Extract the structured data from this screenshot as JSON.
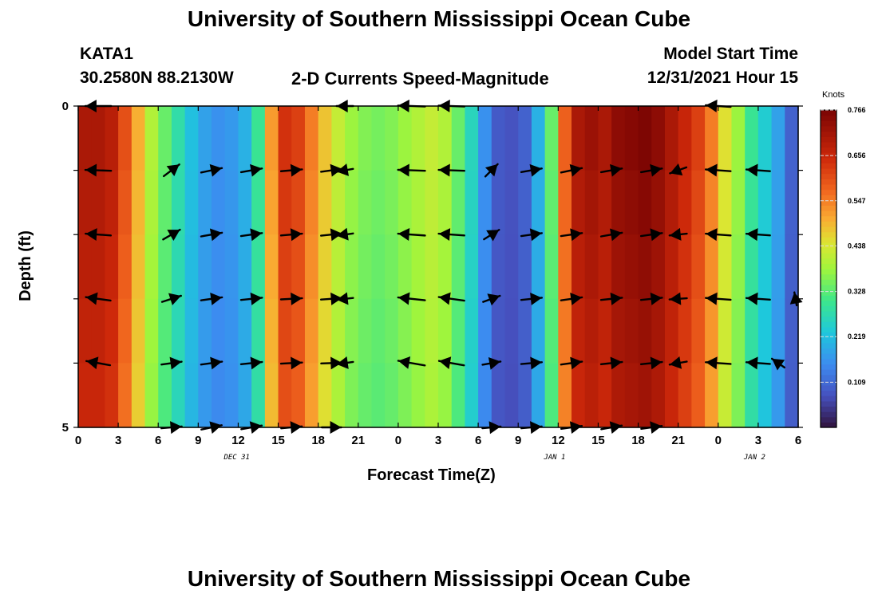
{
  "page": {
    "title_top": "University of Southern Mississippi Ocean Cube",
    "title_bottom": "University of Southern Mississippi Ocean Cube",
    "station_id": "KATA1",
    "station_coords": "30.2580N  88.2130W",
    "product_title": "2-D Currents Speed-Magnitude",
    "model_start_label": "Model Start Time",
    "model_start_value": "12/31/2021 Hour 15"
  },
  "chart_data": {
    "type": "heatmap",
    "title": "2-D Currents Speed-Magnitude",
    "xlabel": "Forecast Time(Z)",
    "ylabel": "Depth (ft)",
    "x_tick_labels": [
      "0",
      "3",
      "6",
      "9",
      "12",
      "15",
      "18",
      "21",
      "0",
      "3",
      "6",
      "9",
      "12",
      "15",
      "18",
      "21",
      "0",
      "3",
      "6"
    ],
    "x_hours": [
      0,
      3,
      6,
      9,
      12,
      15,
      18,
      21,
      24,
      27,
      30,
      33,
      36,
      39,
      42,
      45,
      48,
      51,
      54
    ],
    "x_range_hours": [
      0,
      54
    ],
    "y_tick_labels": [
      "0",
      "5"
    ],
    "ylim": [
      0,
      5
    ],
    "depth_levels": [
      0,
      1,
      2,
      3,
      4,
      5
    ],
    "date_labels": [
      {
        "text": "DEC 31",
        "hour": 12
      },
      {
        "text": "JAN 1",
        "hour": 36
      },
      {
        "text": "JAN 2",
        "hour": 51
      }
    ],
    "colorbar": {
      "units": "Knots",
      "min": 0.0,
      "max": 0.766,
      "tick_labels": [
        "0.766",
        "0.656",
        "0.547",
        "0.438",
        "0.328",
        "0.219",
        "0.109"
      ],
      "tick_values": [
        0.766,
        0.656,
        0.547,
        0.438,
        0.328,
        0.219,
        0.109
      ]
    },
    "speed_knots_by_hour": [
      0.7,
      0.7,
      0.68,
      0.6,
      0.5,
      0.4,
      0.34,
      0.28,
      0.22,
      0.18,
      0.16,
      0.17,
      0.2,
      0.3,
      0.52,
      0.64,
      0.62,
      0.55,
      0.48,
      0.42,
      0.38,
      0.36,
      0.35,
      0.36,
      0.38,
      0.4,
      0.42,
      0.4,
      0.34,
      0.26,
      0.16,
      0.09,
      0.08,
      0.1,
      0.2,
      0.34,
      0.58,
      0.7,
      0.72,
      0.7,
      0.74,
      0.75,
      0.76,
      0.74,
      0.7,
      0.66,
      0.62,
      0.55,
      0.45,
      0.38,
      0.3,
      0.24,
      0.18,
      0.1
    ],
    "vectors": [
      {
        "hour": 1.5,
        "depth": 0,
        "angle_deg": 180,
        "speed": 0.7
      },
      {
        "hour": 1.5,
        "depth": 1,
        "angle_deg": 178,
        "speed": 0.7
      },
      {
        "hour": 1.5,
        "depth": 2,
        "angle_deg": 176,
        "speed": 0.68
      },
      {
        "hour": 1.5,
        "depth": 3,
        "angle_deg": 172,
        "speed": 0.66
      },
      {
        "hour": 1.5,
        "depth": 4,
        "angle_deg": 170,
        "speed": 0.62
      },
      {
        "hour": 7.0,
        "depth": 1,
        "angle_deg": 37,
        "speed": 0.4
      },
      {
        "hour": 7.0,
        "depth": 2,
        "angle_deg": 30,
        "speed": 0.4
      },
      {
        "hour": 7.0,
        "depth": 3,
        "angle_deg": 18,
        "speed": 0.42
      },
      {
        "hour": 7.0,
        "depth": 4,
        "angle_deg": 8,
        "speed": 0.44
      },
      {
        "hour": 7.0,
        "depth": 5,
        "angle_deg": 5,
        "speed": 0.44
      },
      {
        "hour": 10.0,
        "depth": 1,
        "angle_deg": 12,
        "speed": 0.48
      },
      {
        "hour": 10.0,
        "depth": 2,
        "angle_deg": 10,
        "speed": 0.48
      },
      {
        "hour": 10.0,
        "depth": 3,
        "angle_deg": 8,
        "speed": 0.48
      },
      {
        "hour": 10.0,
        "depth": 4,
        "angle_deg": 8,
        "speed": 0.48
      },
      {
        "hour": 10.0,
        "depth": 5,
        "angle_deg": 12,
        "speed": 0.46
      },
      {
        "hour": 13.0,
        "depth": 1,
        "angle_deg": 10,
        "speed": 0.48
      },
      {
        "hour": 13.0,
        "depth": 2,
        "angle_deg": 8,
        "speed": 0.48
      },
      {
        "hour": 13.0,
        "depth": 3,
        "angle_deg": 6,
        "speed": 0.48
      },
      {
        "hour": 13.0,
        "depth": 4,
        "angle_deg": 6,
        "speed": 0.48
      },
      {
        "hour": 13.0,
        "depth": 5,
        "angle_deg": 10,
        "speed": 0.46
      },
      {
        "hour": 16.0,
        "depth": 1,
        "angle_deg": 5,
        "speed": 0.48
      },
      {
        "hour": 16.0,
        "depth": 2,
        "angle_deg": 5,
        "speed": 0.48
      },
      {
        "hour": 16.0,
        "depth": 3,
        "angle_deg": 3,
        "speed": 0.48
      },
      {
        "hour": 16.0,
        "depth": 4,
        "angle_deg": 3,
        "speed": 0.48
      },
      {
        "hour": 16.0,
        "depth": 5,
        "angle_deg": 5,
        "speed": 0.46
      },
      {
        "hour": 19.0,
        "depth": 1,
        "angle_deg": 8,
        "speed": 0.48
      },
      {
        "hour": 19.0,
        "depth": 2,
        "angle_deg": 6,
        "speed": 0.48
      },
      {
        "hour": 19.0,
        "depth": 3,
        "angle_deg": 4,
        "speed": 0.48
      },
      {
        "hour": 19.0,
        "depth": 4,
        "angle_deg": 2,
        "speed": 0.46
      },
      {
        "hour": 19.0,
        "depth": 5,
        "angle_deg": 0,
        "speed": 0.4
      },
      {
        "hour": 20.0,
        "depth": 1,
        "angle_deg": 190,
        "speed": 0.26
      },
      {
        "hour": 20.0,
        "depth": 2,
        "angle_deg": 188,
        "speed": 0.26
      },
      {
        "hour": 20.0,
        "depth": 3,
        "angle_deg": 186,
        "speed": 0.26
      },
      {
        "hour": 20.0,
        "depth": 4,
        "angle_deg": 188,
        "speed": 0.26
      },
      {
        "hour": 20.0,
        "depth": 0,
        "angle_deg": 180,
        "speed": 0.26
      },
      {
        "hour": 25.0,
        "depth": 0,
        "angle_deg": 178,
        "speed": 0.76
      },
      {
        "hour": 25.0,
        "depth": 1,
        "angle_deg": 178,
        "speed": 0.76
      },
      {
        "hour": 25.0,
        "depth": 2,
        "angle_deg": 176,
        "speed": 0.76
      },
      {
        "hour": 25.0,
        "depth": 3,
        "angle_deg": 174,
        "speed": 0.76
      },
      {
        "hour": 25.0,
        "depth": 4,
        "angle_deg": 170,
        "speed": 0.76
      },
      {
        "hour": 28.0,
        "depth": 0,
        "angle_deg": 178,
        "speed": 0.7
      },
      {
        "hour": 28.0,
        "depth": 1,
        "angle_deg": 178,
        "speed": 0.7
      },
      {
        "hour": 28.0,
        "depth": 2,
        "angle_deg": 176,
        "speed": 0.7
      },
      {
        "hour": 28.0,
        "depth": 3,
        "angle_deg": 172,
        "speed": 0.7
      },
      {
        "hour": 28.0,
        "depth": 4,
        "angle_deg": 170,
        "speed": 0.68
      },
      {
        "hour": 31.0,
        "depth": 1,
        "angle_deg": 45,
        "speed": 0.3
      },
      {
        "hour": 31.0,
        "depth": 2,
        "angle_deg": 32,
        "speed": 0.32
      },
      {
        "hour": 31.0,
        "depth": 3,
        "angle_deg": 20,
        "speed": 0.32
      },
      {
        "hour": 31.0,
        "depth": 4,
        "angle_deg": 10,
        "speed": 0.34
      },
      {
        "hour": 31.0,
        "depth": 5,
        "angle_deg": 5,
        "speed": 0.34
      },
      {
        "hour": 34.0,
        "depth": 1,
        "angle_deg": 10,
        "speed": 0.46
      },
      {
        "hour": 34.0,
        "depth": 2,
        "angle_deg": 8,
        "speed": 0.46
      },
      {
        "hour": 34.0,
        "depth": 3,
        "angle_deg": 6,
        "speed": 0.46
      },
      {
        "hour": 34.0,
        "depth": 4,
        "angle_deg": 5,
        "speed": 0.46
      },
      {
        "hour": 34.0,
        "depth": 5,
        "angle_deg": 5,
        "speed": 0.44
      },
      {
        "hour": 37.0,
        "depth": 1,
        "angle_deg": 12,
        "speed": 0.48
      },
      {
        "hour": 37.0,
        "depth": 2,
        "angle_deg": 8,
        "speed": 0.48
      },
      {
        "hour": 37.0,
        "depth": 3,
        "angle_deg": 8,
        "speed": 0.48
      },
      {
        "hour": 37.0,
        "depth": 4,
        "angle_deg": 8,
        "speed": 0.48
      },
      {
        "hour": 37.0,
        "depth": 5,
        "angle_deg": 8,
        "speed": 0.46
      },
      {
        "hour": 40.0,
        "depth": 1,
        "angle_deg": 10,
        "speed": 0.48
      },
      {
        "hour": 40.0,
        "depth": 2,
        "angle_deg": 10,
        "speed": 0.48
      },
      {
        "hour": 40.0,
        "depth": 3,
        "angle_deg": 6,
        "speed": 0.48
      },
      {
        "hour": 40.0,
        "depth": 4,
        "angle_deg": 6,
        "speed": 0.48
      },
      {
        "hour": 40.0,
        "depth": 5,
        "angle_deg": 10,
        "speed": 0.46
      },
      {
        "hour": 43.0,
        "depth": 1,
        "angle_deg": 10,
        "speed": 0.48
      },
      {
        "hour": 43.0,
        "depth": 2,
        "angle_deg": 8,
        "speed": 0.48
      },
      {
        "hour": 43.0,
        "depth": 3,
        "angle_deg": 6,
        "speed": 0.48
      },
      {
        "hour": 43.0,
        "depth": 4,
        "angle_deg": 6,
        "speed": 0.48
      },
      {
        "hour": 43.0,
        "depth": 5,
        "angle_deg": 8,
        "speed": 0.46
      },
      {
        "hour": 45.0,
        "depth": 1,
        "angle_deg": 200,
        "speed": 0.3
      },
      {
        "hour": 45.0,
        "depth": 2,
        "angle_deg": 186,
        "speed": 0.3
      },
      {
        "hour": 45.0,
        "depth": 3,
        "angle_deg": 184,
        "speed": 0.3
      },
      {
        "hour": 45.0,
        "depth": 4,
        "angle_deg": 190,
        "speed": 0.3
      },
      {
        "hour": 48.0,
        "depth": 0,
        "angle_deg": 176,
        "speed": 0.66
      },
      {
        "hour": 48.0,
        "depth": 1,
        "angle_deg": 176,
        "speed": 0.66
      },
      {
        "hour": 48.0,
        "depth": 2,
        "angle_deg": 176,
        "speed": 0.66
      },
      {
        "hour": 48.0,
        "depth": 3,
        "angle_deg": 176,
        "speed": 0.66
      },
      {
        "hour": 48.0,
        "depth": 4,
        "angle_deg": 176,
        "speed": 0.66
      },
      {
        "hour": 51.0,
        "depth": 1,
        "angle_deg": 176,
        "speed": 0.6
      },
      {
        "hour": 51.0,
        "depth": 2,
        "angle_deg": 176,
        "speed": 0.6
      },
      {
        "hour": 51.0,
        "depth": 3,
        "angle_deg": 176,
        "speed": 0.6
      },
      {
        "hour": 51.0,
        "depth": 4,
        "angle_deg": 176,
        "speed": 0.6
      },
      {
        "hour": 53.8,
        "depth": 3,
        "angle_deg": 100,
        "speed": 0.1
      },
      {
        "hour": 52.5,
        "depth": 4,
        "angle_deg": 145,
        "speed": 0.2
      }
    ]
  }
}
